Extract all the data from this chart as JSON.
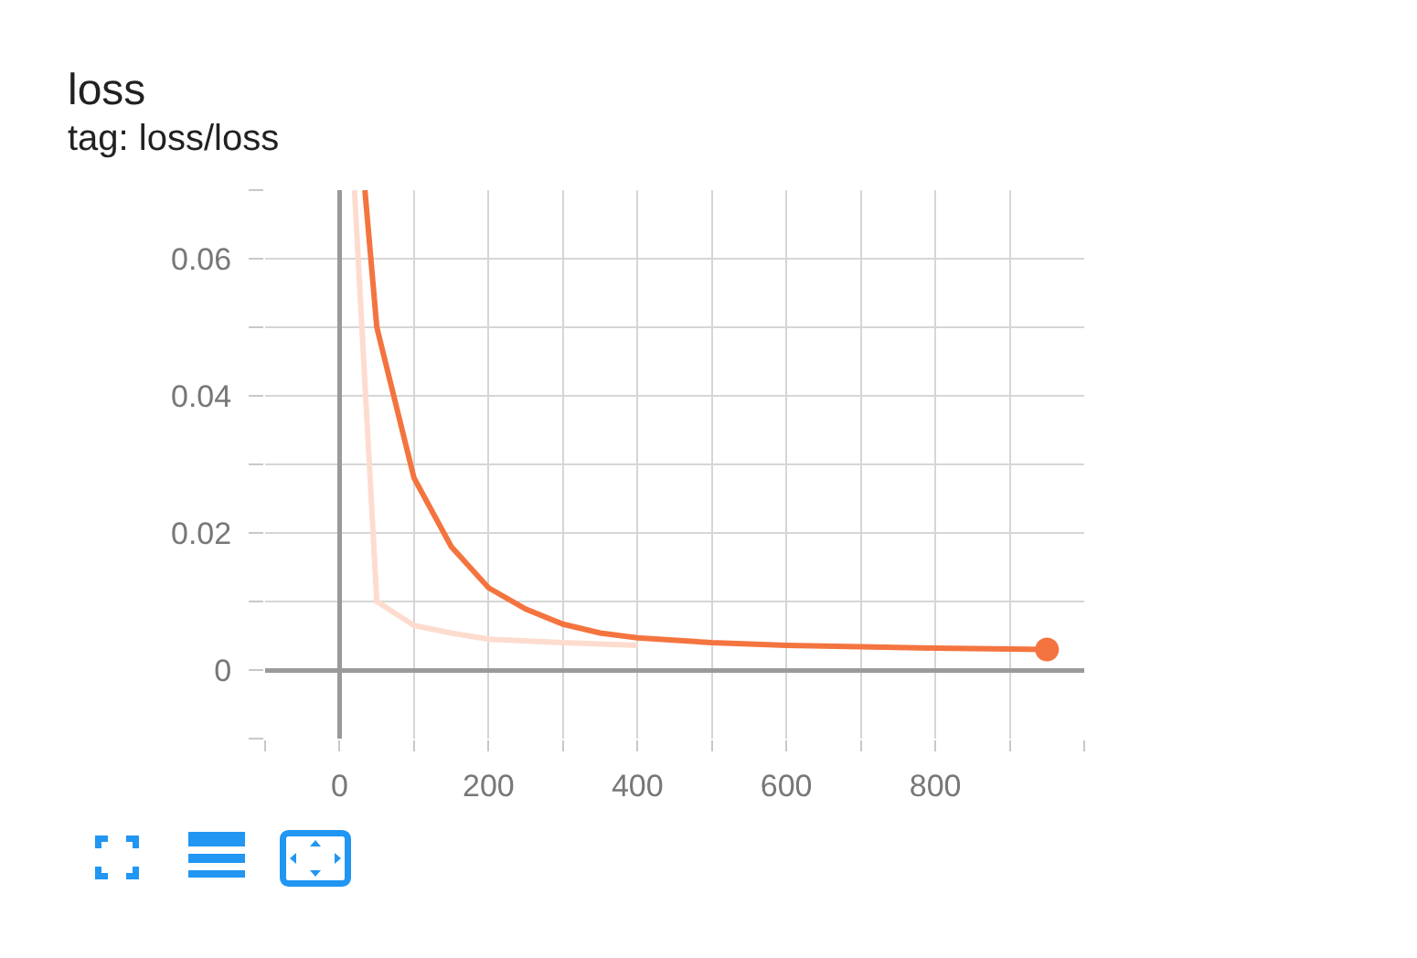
{
  "chart_data": {
    "type": "line",
    "title": "loss",
    "subtitle": "tag: loss/loss",
    "xlim": [
      -100,
      1000
    ],
    "xticks": [
      {
        "value": -100,
        "label": null
      },
      0,
      {
        "value": 100,
        "label": null
      },
      200,
      {
        "value": 300,
        "label": null
      },
      400,
      {
        "value": 500,
        "label": null
      },
      600,
      {
        "value": 700,
        "label": null
      },
      800,
      {
        "value": 900,
        "label": null
      },
      {
        "value": 1000,
        "label": null
      }
    ],
    "ylim": [
      -0.01,
      0.07
    ],
    "yticks": [
      {
        "value": -0.01,
        "label": null
      },
      0,
      {
        "value": 0.01,
        "label": null
      },
      0.02,
      {
        "value": 0.03,
        "label": null
      },
      0.04,
      {
        "value": 0.05,
        "label": null
      },
      0.06,
      {
        "value": 0.07,
        "label": null
      }
    ],
    "grid": true,
    "series": [
      {
        "color": "#fddccf",
        "x": [
          20,
          50,
          100,
          150,
          200,
          300,
          400
        ],
        "values": [
          0.07,
          0.01,
          0.0065,
          0.0054,
          0.0045,
          0.004,
          0.0036
        ]
      },
      {
        "color": "#f4743f",
        "x": [
          34,
          50,
          100,
          150,
          200,
          250,
          300,
          350,
          400,
          500,
          600,
          700,
          800,
          950
        ],
        "values": [
          0.07,
          0.05,
          0.028,
          0.018,
          0.012,
          0.0089,
          0.0067,
          0.0054,
          0.0047,
          0.004,
          0.0036,
          0.0034,
          0.0032,
          0.003
        ]
      },
      {
        "type": "scatter",
        "marker": "circle",
        "color": "#f4743f",
        "x": [
          950
        ],
        "values": [
          0.003
        ]
      }
    ]
  }
}
